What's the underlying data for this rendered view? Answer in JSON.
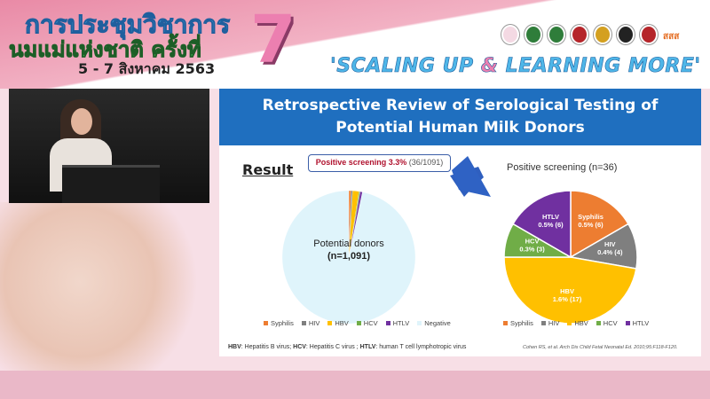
{
  "banner": {
    "thai_line1": "การประชุมวิชาการ",
    "thai_line2": "นมแม่แห่งชาติ ครั้งที่",
    "dates": "5 - 7 สิงหาคม 2563",
    "edition": "7",
    "slogan_a": "'SCALING UP ",
    "slogan_amp": "&",
    "slogan_b": " LEARNING MORE'",
    "logo_text": "สสส"
  },
  "slide": {
    "title_line1": "Retrospective Review of Serological Testing of",
    "title_line2": "Potential Human Milk Donors",
    "result_label": "Result",
    "callout_bold": "Positive screening 3.3%",
    "callout_rest": " (36/1091)",
    "footnote": {
      "hbv": "HBV",
      "hbv_t": ": Hepatitis B virus; ",
      "hcv": "HCV",
      "hcv_t": ": Hepatitis C virus ; ",
      "htlv": "HTLV",
      "htlv_t": ": human T cell lymphotropic virus"
    },
    "citation": "Cohen RS, et al. Arch Dis Child Fetal Neonatal Ed. 2010;95:F118-F120."
  },
  "chart_data": [
    {
      "type": "pie",
      "center_label_1": "Potential donors",
      "center_label_2": "(n=1,091)",
      "categories": [
        "Syphilis",
        "HIV",
        "HBV",
        "HCV",
        "HTLV",
        "Negative"
      ],
      "values": [
        6,
        4,
        17,
        3,
        6,
        1055
      ],
      "colors": [
        "#ed7d31",
        "#7f7f7f",
        "#ffc000",
        "#70ad47",
        "#7030a0",
        "#dff4fb"
      ],
      "legend": "bottom"
    },
    {
      "type": "pie",
      "title": "Positive screening (n=36)",
      "categories": [
        "Syphilis",
        "HIV",
        "HBV",
        "HCV",
        "HTLV"
      ],
      "values": [
        6,
        4,
        17,
        3,
        6
      ],
      "labels": [
        "0.5% (6)",
        "0.4% (4)",
        "1.6% (17)",
        "0.3% (3)",
        "0.5% (6)"
      ],
      "colors": [
        "#ed7d31",
        "#7f7f7f",
        "#ffc000",
        "#70ad47",
        "#7030a0"
      ],
      "legend": "bottom"
    }
  ]
}
